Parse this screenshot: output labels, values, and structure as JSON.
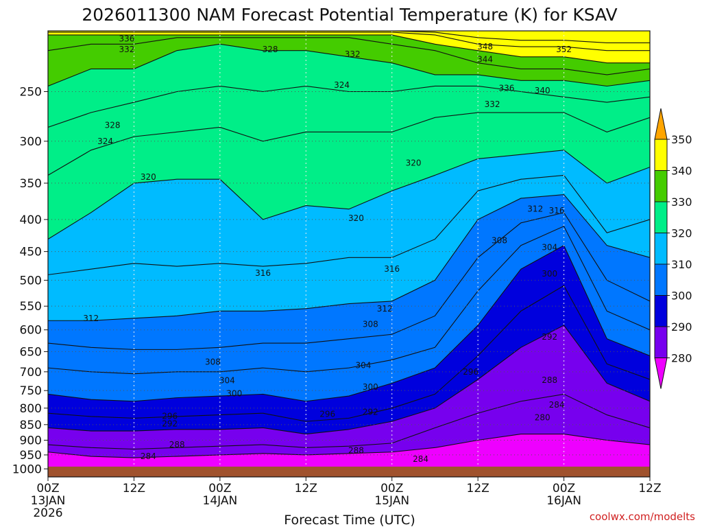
{
  "chart_data": {
    "type": "heatmap",
    "title": "2026011300 NAM Forecast Potential Temperature (K) for KSAV",
    "xlabel": "Forecast Time (UTC)",
    "ylabel": "",
    "credit": "coolwx.com/modelts",
    "y_ticks": [
      250,
      300,
      350,
      400,
      450,
      500,
      550,
      600,
      650,
      700,
      750,
      800,
      850,
      900,
      950,
      1000
    ],
    "y_range_hPa": [
      1030,
      200
    ],
    "y_scale": "log",
    "x_ticks": [
      {
        "hour": 0,
        "line1": "00Z",
        "line2": "13JAN",
        "line3": "2026"
      },
      {
        "hour": 12,
        "line1": "12Z",
        "line2": "",
        "line3": ""
      },
      {
        "hour": 24,
        "line1": "00Z",
        "line2": "14JAN",
        "line3": ""
      },
      {
        "hour": 36,
        "line1": "12Z",
        "line2": "",
        "line3": ""
      },
      {
        "hour": 48,
        "line1": "00Z",
        "line2": "15JAN",
        "line3": ""
      },
      {
        "hour": 60,
        "line1": "12Z",
        "line2": "",
        "line3": ""
      },
      {
        "hour": 72,
        "line1": "00Z",
        "line2": "16JAN",
        "line3": ""
      },
      {
        "hour": 84,
        "line1": "12Z",
        "line2": "",
        "line3": ""
      }
    ],
    "x_range_hours": [
      0,
      84
    ],
    "colorbar": {
      "labels": [
        "350",
        "340",
        "330",
        "320",
        "310",
        "300",
        "290",
        "280"
      ],
      "colors": [
        "#ffa500",
        "#ffff00",
        "#44cc00",
        "#00ee88",
        "#00bbff",
        "#0077ff",
        "#0000dd",
        "#7700ee",
        "#ee00ff"
      ]
    },
    "hours": [
      0,
      6,
      12,
      18,
      24,
      30,
      36,
      42,
      48,
      54,
      60,
      66,
      72,
      78,
      84
    ],
    "isentropes": [
      {
        "value": 284,
        "p": [
          940,
          955,
          960,
          955,
          950,
          945,
          950,
          945,
          940,
          925,
          900,
          880,
          880,
          900,
          915
        ]
      },
      {
        "value": 288,
        "p": [
          915,
          925,
          930,
          925,
          920,
          915,
          925,
          920,
          910,
          860,
          815,
          780,
          760,
          820,
          860
        ]
      },
      {
        "value": 292,
        "p": [
          860,
          870,
          870,
          865,
          865,
          860,
          880,
          865,
          840,
          800,
          720,
          640,
          590,
          730,
          780
        ]
      },
      {
        "value": 296,
        "p": [
          815,
          825,
          830,
          825,
          820,
          815,
          840,
          830,
          800,
          760,
          660,
          560,
          510,
          680,
          720
        ]
      },
      {
        "value": 300,
        "p": [
          760,
          775,
          780,
          770,
          765,
          760,
          780,
          765,
          730,
          690,
          590,
          480,
          440,
          620,
          660
        ]
      },
      {
        "value": 304,
        "p": [
          690,
          700,
          705,
          700,
          700,
          690,
          700,
          690,
          670,
          640,
          520,
          440,
          410,
          560,
          600
        ]
      },
      {
        "value": 308,
        "p": [
          630,
          640,
          645,
          645,
          640,
          630,
          630,
          620,
          610,
          570,
          460,
          405,
          390,
          500,
          540
        ]
      },
      {
        "value": 312,
        "p": [
          580,
          580,
          575,
          570,
          560,
          560,
          555,
          545,
          540,
          500,
          400,
          370,
          365,
          440,
          460
        ]
      },
      {
        "value": 316,
        "p": [
          490,
          480,
          470,
          475,
          470,
          475,
          470,
          460,
          460,
          430,
          360,
          345,
          340,
          420,
          400
        ]
      },
      {
        "value": 320,
        "p": [
          430,
          390,
          350,
          345,
          345,
          400,
          380,
          385,
          360,
          340,
          320,
          315,
          310,
          350,
          330
        ]
      },
      {
        "value": 324,
        "p": [
          340,
          310,
          295,
          290,
          285,
          300,
          290,
          290,
          290,
          275,
          270,
          270,
          270,
          290,
          275
        ]
      },
      {
        "value": 328,
        "p": [
          285,
          270,
          260,
          250,
          245,
          250,
          245,
          250,
          250,
          245,
          245,
          250,
          255,
          260,
          255
        ]
      },
      {
        "value": 332,
        "p": [
          245,
          230,
          230,
          215,
          210,
          215,
          215,
          220,
          225,
          235,
          235,
          240,
          240,
          245,
          240
        ]
      },
      {
        "value": 336,
        "p": [
          215,
          210,
          210,
          205,
          205,
          205,
          205,
          205,
          210,
          215,
          225,
          230,
          230,
          235,
          230
        ]
      },
      {
        "value": 340,
        "p": [
          203,
          203,
          203,
          203,
          203,
          203,
          203,
          203,
          203,
          210,
          215,
          220,
          220,
          225,
          225
        ]
      },
      {
        "value": 344,
        "p": [
          201,
          201,
          201,
          201,
          201,
          201,
          201,
          201,
          201,
          203,
          210,
          212,
          212,
          215,
          215
        ]
      },
      {
        "value": 348,
        "p": [
          200,
          200,
          200,
          200,
          200,
          200,
          200,
          200,
          200,
          201,
          205,
          207,
          207,
          209,
          209
        ]
      }
    ],
    "contour_labels": [
      {
        "text": "336",
        "hour": 11,
        "p": 206
      },
      {
        "text": "332",
        "hour": 11,
        "p": 214
      },
      {
        "text": "328",
        "hour": 31,
        "p": 214
      },
      {
        "text": "332",
        "hour": 42.5,
        "p": 218
      },
      {
        "text": "348",
        "hour": 61,
        "p": 212
      },
      {
        "text": "344",
        "hour": 61,
        "p": 222
      },
      {
        "text": "352",
        "hour": 72,
        "p": 214
      },
      {
        "text": "324",
        "hour": 41,
        "p": 244
      },
      {
        "text": "336",
        "hour": 64,
        "p": 247
      },
      {
        "text": "340",
        "hour": 69,
        "p": 249
      },
      {
        "text": "332",
        "hour": 62,
        "p": 262
      },
      {
        "text": "328",
        "hour": 9,
        "p": 283
      },
      {
        "text": "324",
        "hour": 8,
        "p": 300
      },
      {
        "text": "320",
        "hour": 51,
        "p": 325
      },
      {
        "text": "320",
        "hour": 14,
        "p": 342
      },
      {
        "text": "312",
        "hour": 68,
        "p": 385
      },
      {
        "text": "316",
        "hour": 71,
        "p": 387
      },
      {
        "text": "320",
        "hour": 43,
        "p": 398
      },
      {
        "text": "308",
        "hour": 63,
        "p": 432
      },
      {
        "text": "304",
        "hour": 70,
        "p": 443
      },
      {
        "text": "316",
        "hour": 30,
        "p": 487
      },
      {
        "text": "316",
        "hour": 48,
        "p": 480
      },
      {
        "text": "300",
        "hour": 70,
        "p": 488
      },
      {
        "text": "312",
        "hour": 47,
        "p": 555
      },
      {
        "text": "312",
        "hour": 6,
        "p": 575
      },
      {
        "text": "308",
        "hour": 45,
        "p": 588
      },
      {
        "text": "292",
        "hour": 70,
        "p": 616
      },
      {
        "text": "308",
        "hour": 23,
        "p": 675
      },
      {
        "text": "304",
        "hour": 44,
        "p": 684
      },
      {
        "text": "296",
        "hour": 59,
        "p": 700
      },
      {
        "text": "304",
        "hour": 25,
        "p": 723
      },
      {
        "text": "300",
        "hour": 45,
        "p": 740
      },
      {
        "text": "288",
        "hour": 70,
        "p": 722
      },
      {
        "text": "300",
        "hour": 26,
        "p": 758
      },
      {
        "text": "284",
        "hour": 71,
        "p": 790
      },
      {
        "text": "296",
        "hour": 17,
        "p": 824
      },
      {
        "text": "296",
        "hour": 39,
        "p": 818
      },
      {
        "text": "292",
        "hour": 45,
        "p": 812
      },
      {
        "text": "292",
        "hour": 17,
        "p": 847
      },
      {
        "text": "280",
        "hour": 69,
        "p": 828
      },
      {
        "text": "288",
        "hour": 18,
        "p": 915
      },
      {
        "text": "284",
        "hour": 14,
        "p": 955
      },
      {
        "text": "288",
        "hour": 43,
        "p": 935
      },
      {
        "text": "284",
        "hour": 52,
        "p": 965
      }
    ]
  }
}
